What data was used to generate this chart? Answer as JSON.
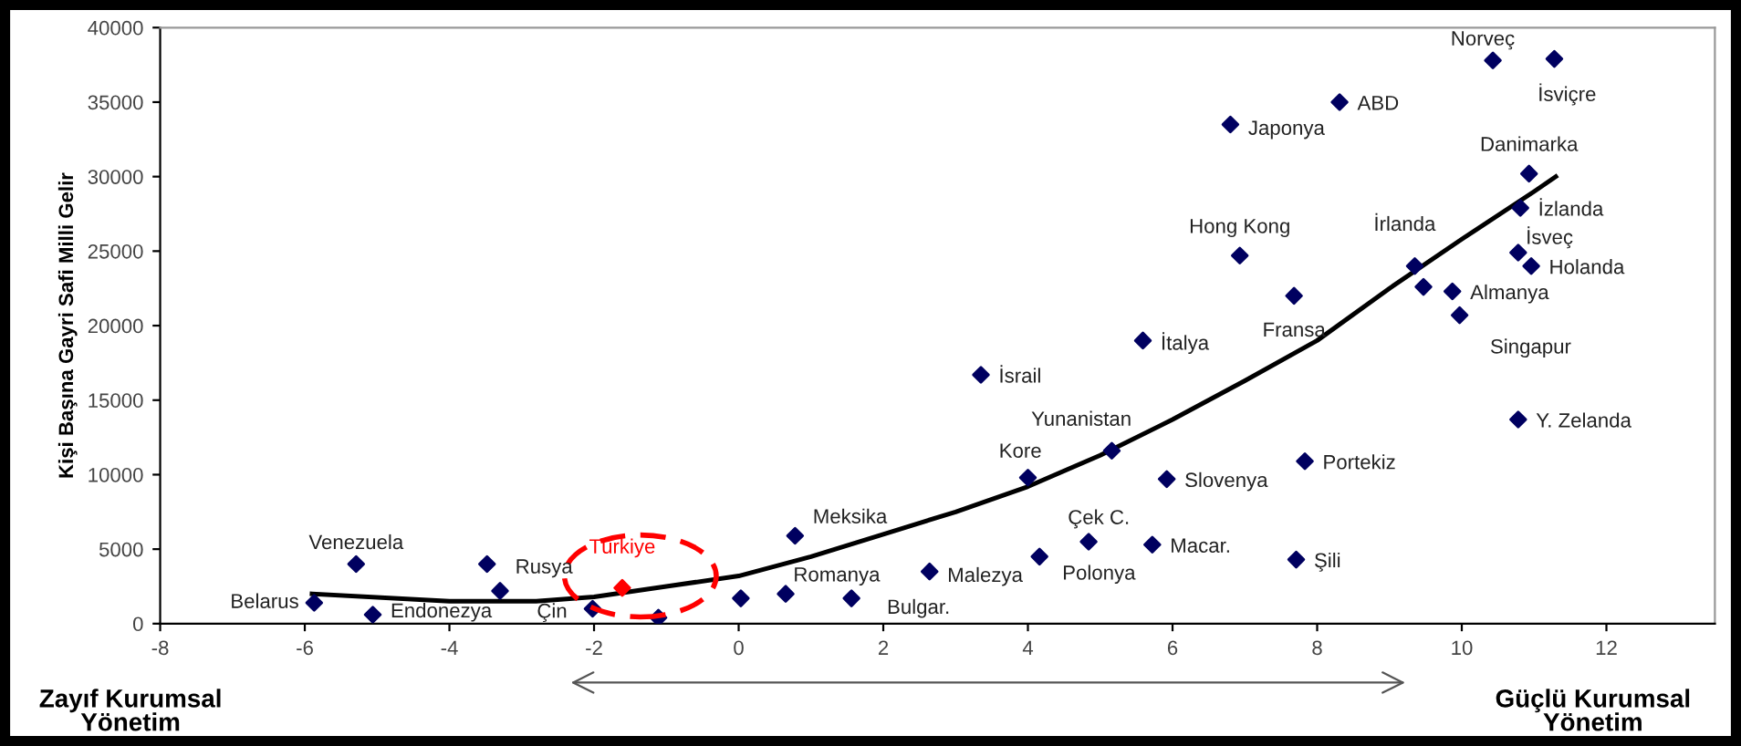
{
  "chart_data": {
    "type": "scatter",
    "ylabel": "Kişi Başına Gayri Safi Milli Gelir",
    "xlim": [
      -8,
      13.5
    ],
    "ylim": [
      0,
      40000
    ],
    "xticks": [
      -8,
      -6,
      -4,
      -2,
      0,
      2,
      4,
      6,
      8,
      10,
      12
    ],
    "yticks": [
      0,
      5000,
      10000,
      15000,
      20000,
      25000,
      30000,
      35000,
      40000
    ],
    "grid": false,
    "legend": false,
    "marker": "diamond",
    "series": [
      {
        "color": "#000060",
        "x": [
          -5.87,
          -5.29,
          -5.06,
          -3.48,
          -3.3,
          -2.02,
          -1.11,
          0.03,
          0.65,
          0.78,
          1.56,
          2.64,
          4.0,
          4.16,
          4.84,
          5.72,
          5.16,
          5.92,
          3.35,
          5.59,
          6.8,
          6.93,
          8.31,
          7.68,
          7.83,
          7.71,
          9.35,
          9.47,
          9.87,
          9.97,
          10.43,
          11.28,
          10.93,
          10.81,
          10.78,
          10.96,
          10.78
        ],
        "values": [
          1400,
          4000,
          600,
          4000,
          2200,
          1000,
          400,
          1700,
          2000,
          5900,
          1700,
          3500,
          9800,
          4500,
          5500,
          5300,
          11600,
          9700,
          16700,
          19000,
          33500,
          24700,
          35000,
          22000,
          10900,
          4300,
          24000,
          22600,
          22300,
          20700,
          37800,
          37900,
          30200,
          27900,
          24900,
          24000,
          13700
        ]
      },
      {
        "name": "Türkiye",
        "color": "#ff0000",
        "x": [
          -1.61
        ],
        "values": [
          2400
        ]
      },
      {
        "type": "line",
        "color": "#000000",
        "marker": "none",
        "x": [
          -5.9,
          -4,
          -2.8,
          -2,
          -1,
          0,
          1,
          2,
          3,
          4,
          5,
          6,
          7,
          8,
          9,
          10,
          11,
          11.3
        ],
        "values": [
          2000,
          1500,
          1500,
          1800,
          2500,
          3200,
          4500,
          6000,
          7500,
          9200,
          11300,
          13700,
          16300,
          19000,
          22500,
          25800,
          29000,
          30000
        ]
      }
    ],
    "annotations": [
      "Zayıf Kurumsal Yönetim",
      "Güçlü Kurumsal Yönetim",
      {
        "text": "Belarus",
        "x": -5.87,
        "y": 1400
      },
      {
        "text": "Venezuela",
        "x": -5.29,
        "y": 4000
      },
      {
        "text": "Endonezya",
        "x": -5.06,
        "y": 600
      },
      {
        "text": "Rusya",
        "x": -3.3,
        "y": 2200
      },
      {
        "text": "Çin",
        "x": -2.02,
        "y": 1000
      },
      {
        "text": "Meksika",
        "x": 0.78,
        "y": 5900
      },
      {
        "text": "Romanya",
        "x": 0.65,
        "y": 2000
      },
      {
        "text": "Bulgar.",
        "x": 1.56,
        "y": 1700
      },
      {
        "text": "Malezya",
        "x": 2.64,
        "y": 3500
      },
      {
        "text": "Kore",
        "x": 4.0,
        "y": 9800
      },
      {
        "text": "Polonya",
        "x": 4.16,
        "y": 4500
      },
      {
        "text": "Çek C.",
        "x": 4.84,
        "y": 5500
      },
      {
        "text": "Macar.",
        "x": 5.72,
        "y": 5300
      },
      {
        "text": "Yunanistan",
        "x": 5.16,
        "y": 11600
      },
      {
        "text": "Slovenya",
        "x": 5.92,
        "y": 9700
      },
      {
        "text": "İsrail",
        "x": 3.35,
        "y": 16700
      },
      {
        "text": "İtalya",
        "x": 5.59,
        "y": 19000
      },
      {
        "text": "Japonya",
        "x": 6.8,
        "y": 33500
      },
      {
        "text": "Hong Kong",
        "x": 6.93,
        "y": 24700
      },
      {
        "text": "ABD",
        "x": 8.31,
        "y": 35000
      },
      {
        "text": "Fransa",
        "x": 7.68,
        "y": 22000
      },
      {
        "text": "Portekiz",
        "x": 7.83,
        "y": 10900
      },
      {
        "text": "Şili",
        "x": 7.71,
        "y": 4300
      },
      {
        "text": "İrlanda",
        "x": 9.35,
        "y": 24000
      },
      {
        "text": "Almanya",
        "x": 9.87,
        "y": 22300
      },
      {
        "text": "Singapur",
        "x": 9.97,
        "y": 20700
      },
      {
        "text": "Norveç",
        "x": 10.43,
        "y": 37800
      },
      {
        "text": "İsviçre",
        "x": 11.28,
        "y": 37900
      },
      {
        "text": "Danimarka",
        "x": 10.93,
        "y": 30200
      },
      {
        "text": "İzlanda",
        "x": 10.81,
        "y": 27900
      },
      {
        "text": "İsveç",
        "x": 10.78,
        "y": 24900
      },
      {
        "text": "Holanda",
        "x": 10.96,
        "y": 24000
      },
      {
        "text": "Y. Zelanda",
        "x": 10.78,
        "y": 13700
      }
    ]
  }
}
